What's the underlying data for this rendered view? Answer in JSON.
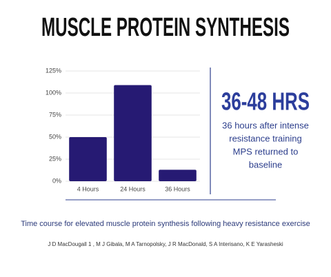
{
  "chart_data": {
    "type": "bar",
    "title": "MUSCLE PROTEIN SYNTHESIS",
    "categories": [
      "4 Hours",
      "24 Hours",
      "36 Hours"
    ],
    "values": [
      50,
      109,
      13
    ],
    "color": "#261a73",
    "ylim": [
      0,
      125
    ],
    "yticks": [
      {
        "value": 0,
        "label": "0%"
      },
      {
        "value": 25,
        "label": "25%"
      },
      {
        "value": 50,
        "label": "50%"
      },
      {
        "value": 75,
        "label": "75%"
      },
      {
        "value": 100,
        "label": "100%"
      },
      {
        "value": 125,
        "label": "125%"
      }
    ],
    "grid": true
  },
  "callout": {
    "headline": "36-48 HRS",
    "lines": [
      "36 hours after intense",
      "resistance training",
      "MPS returned to",
      "baseline"
    ]
  },
  "caption": "Time course for elevated muscle protein synthesis following heavy resistance exercise",
  "authors": "J D MacDougall  1 , M J Gibala, M A Tarnopolsky, J R MacDonald, S A Interisano, K E Yarasheski"
}
